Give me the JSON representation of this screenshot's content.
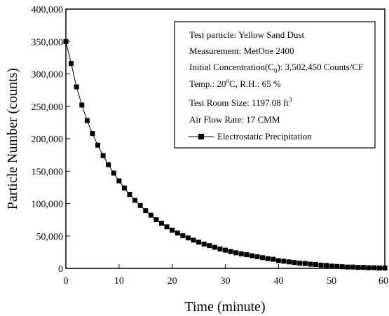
{
  "chart_data": {
    "type": "line",
    "xlabel": "Time (minute)",
    "ylabel": "Particle Number (counts)",
    "xlim": [
      0,
      60
    ],
    "ylim": [
      0,
      400000
    ],
    "x_ticks": [
      "0",
      "10",
      "20",
      "30",
      "40",
      "50",
      "60"
    ],
    "y_ticks": [
      "0",
      "50,000",
      "100,000",
      "150,000",
      "200,000",
      "250,000",
      "300,000",
      "350,000",
      "400,000"
    ],
    "grid": false,
    "legend_position": "top-right",
    "annotations": [
      "Test particle: Yellow Sand Dust",
      "Measurement: MetOne 2400",
      "Initial Concentration(C",
      "0",
      "): 3,502,450 Counts/CF",
      "Temp.: 20",
      "o",
      "C, R.H.: 65 %",
      "Test Room Size: 1197.08 ft",
      "3",
      "Air Flow Rate: 17 CMM"
    ],
    "series": [
      {
        "name": "Electrostatic Precipitation",
        "marker": "square",
        "color": "#000000",
        "x": [
          0,
          1,
          2,
          3,
          4,
          5,
          6,
          7,
          8,
          9,
          10,
          11,
          12,
          13,
          14,
          15,
          16,
          17,
          18,
          19,
          20,
          21,
          22,
          23,
          24,
          25,
          26,
          27,
          28,
          29,
          30,
          31,
          32,
          33,
          34,
          35,
          36,
          37,
          38,
          39,
          40,
          41,
          42,
          43,
          44,
          45,
          46,
          47,
          48,
          49,
          50,
          51,
          52,
          53,
          54,
          55,
          56,
          57,
          58,
          59,
          60
        ],
        "y": [
          350000,
          316000,
          280000,
          252000,
          228000,
          208000,
          190000,
          174000,
          160000,
          147000,
          135000,
          124000,
          114000,
          105000,
          97000,
          89000,
          82000,
          75000,
          69500,
          64000,
          59000,
          54500,
          50500,
          47000,
          43500,
          40500,
          37500,
          35000,
          32500,
          30000,
          28000,
          26000,
          24000,
          22500,
          21000,
          19500,
          18000,
          16500,
          15000,
          14000,
          12000,
          11000,
          10000,
          9000,
          8000,
          7500,
          6500,
          6000,
          5000,
          4500,
          3500,
          3000,
          2500,
          2000,
          2000,
          1500,
          1500,
          1000,
          1000,
          500,
          500
        ]
      }
    ]
  }
}
